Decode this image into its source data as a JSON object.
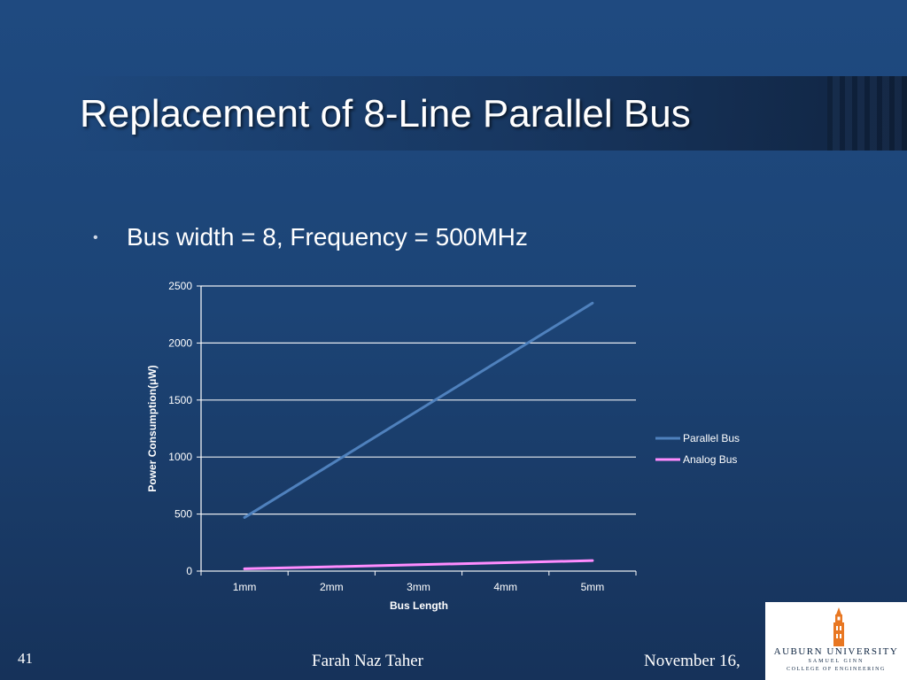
{
  "slide": {
    "title": "Replacement of 8-Line Parallel Bus",
    "bullet_marker": "•",
    "bullet_text": "Bus width = 8, Frequency = 500MHz",
    "slide_number": "41",
    "author": "Farah Naz Taher",
    "date": "November 16,"
  },
  "logo": {
    "name": "AUBURN UNIVERSITY",
    "sub1": "SAMUEL GINN",
    "sub2": "COLLEGE OF ENGINEERING"
  },
  "colors": {
    "background": "#1c4476",
    "parallel_bus": "#4f81bd",
    "analog_bus": "#ff8cff",
    "logo_orange": "#e87722",
    "grid": "#ffffff"
  },
  "chart_data": {
    "type": "line",
    "title": "",
    "xlabel": "Bus Length",
    "ylabel": "Power Consumption(μW)",
    "categories": [
      "1mm",
      "2mm",
      "3mm",
      "4mm",
      "5mm"
    ],
    "ylim": [
      0,
      2500
    ],
    "yticks": [
      0,
      500,
      1000,
      1500,
      2000,
      2500
    ],
    "grid": true,
    "legend_position": "right",
    "series": [
      {
        "name": "Parallel Bus",
        "values": [
          470,
          940,
          1410,
          1880,
          2350
        ]
      },
      {
        "name": "Analog Bus",
        "values": [
          20,
          38,
          56,
          74,
          92
        ]
      }
    ]
  }
}
